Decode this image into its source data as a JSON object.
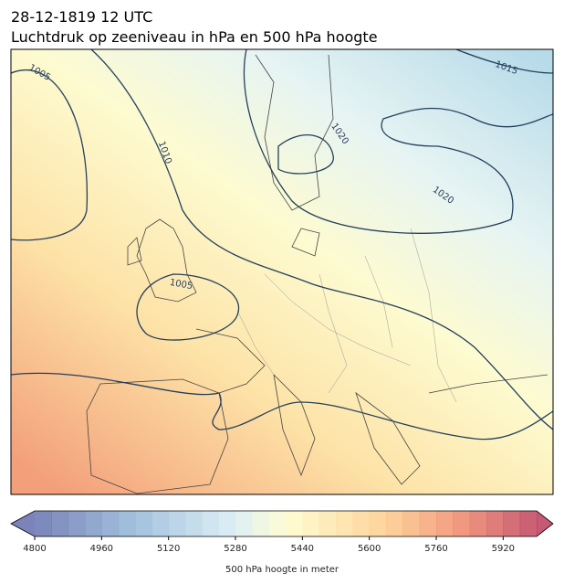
{
  "header": {
    "title": [
      "28-12-1819 12 UTC",
      "Luchtdruk op zeeniveau in hPa en 500 hPa hoogte"
    ]
  },
  "map": {
    "contour_labels": [
      1005,
      1010,
      1005,
      1020,
      1020,
      1015
    ]
  },
  "colorbar": {
    "min": 4800,
    "max": 6000,
    "step": 40,
    "ticks": [
      4800,
      4960,
      5120,
      5280,
      5440,
      5600,
      5760,
      5920
    ],
    "label": "500 hPa hoogte in meter"
  }
}
